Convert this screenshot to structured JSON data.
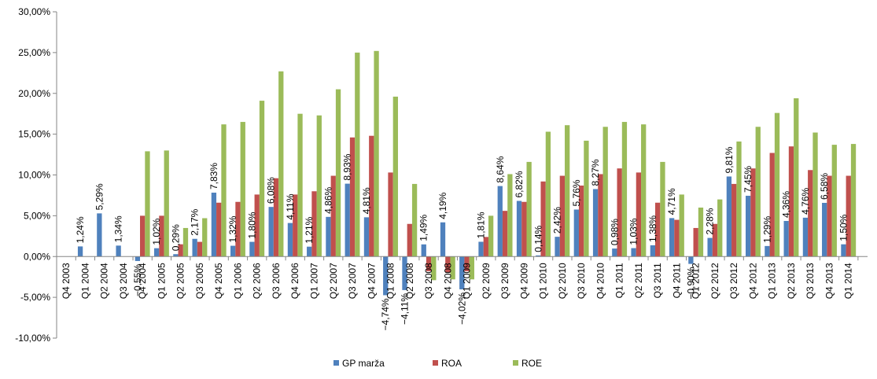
{
  "chart_data": {
    "type": "bar",
    "title": "",
    "xlabel": "",
    "ylabel": "",
    "ylim": [
      -10,
      30
    ],
    "ytick_step": 5,
    "ytick_format": "percent-2dp-comma",
    "grid": false,
    "legend_position": "bottom",
    "categories": [
      "Q4 2003",
      "Q1 2004",
      "Q2 2004",
      "Q3 2004",
      "Q4 2004",
      "Q1 2005",
      "Q2 2005",
      "Q3 2005",
      "Q4 2005",
      "Q1 2006",
      "Q2 2006",
      "Q3 2006",
      "Q4 2006",
      "Q1 2007",
      "Q2 2007",
      "Q3 2007",
      "Q4 2007",
      "Q1 2008",
      "Q2 2008",
      "Q3 2008",
      "Q4 2008",
      "Q1 2009",
      "Q2 2009",
      "Q3 2009",
      "Q4 2009",
      "Q1 2010",
      "Q2 2010",
      "Q3 2010",
      "Q4 2010",
      "Q1 2011",
      "Q2 2011",
      "Q3 2011",
      "Q4 2011",
      "Q1 2012",
      "Q2 2012",
      "Q3 2012",
      "Q4 2012",
      "Q1 2013",
      "Q2 2013",
      "Q3 2013",
      "Q4 2013",
      "Q1 2014"
    ],
    "series": [
      {
        "name": "GP marža",
        "color": "#4F81BD",
        "values": [
          0,
          1.24,
          5.29,
          1.34,
          -0.55,
          1.02,
          0.29,
          2.17,
          7.83,
          1.32,
          1.8,
          6.08,
          4.11,
          1.21,
          4.86,
          8.93,
          4.81,
          -4.74,
          -4.11,
          1.49,
          4.19,
          -4.02,
          1.81,
          8.64,
          6.82,
          0.14,
          2.42,
          5.76,
          8.27,
          0.98,
          1.03,
          1.38,
          4.71,
          -0.9,
          2.28,
          9.81,
          7.45,
          1.29,
          4.36,
          4.76,
          6.58,
          1.5
        ],
        "labels": [
          "",
          "1,24%",
          "5,29%",
          "1,34%",
          "-0,55%",
          "1,02%",
          "0,29%",
          "2,17%",
          "7,83%",
          "1,32%",
          "1,80%",
          "6,08%",
          "4,11%",
          "1,21%",
          "4,86%",
          "8,93%",
          "4,81%",
          "-4,74%",
          "-4,11%",
          "1,49%",
          "4,19%",
          "-4,02%",
          "1,81%",
          "8,64%",
          "6,82%",
          "0,14%",
          "2,42%",
          "5,76%",
          "8,27%",
          "0,98%",
          "1,03%",
          "1,38%",
          "4,71%",
          "-0,90%",
          "2,28%",
          "9,81%",
          "7,45%",
          "1,29%",
          "4,36%",
          "4,76%",
          "6,58%",
          "1,50%"
        ]
      },
      {
        "name": "ROA",
        "color": "#C0504D",
        "values": [
          0,
          0,
          0,
          0,
          5.0,
          5.0,
          1.5,
          1.8,
          6.6,
          6.7,
          7.6,
          9.6,
          7.6,
          8.0,
          9.9,
          14.6,
          14.8,
          10.3,
          4.0,
          -1.8,
          -2.0,
          -1.8,
          2.4,
          5.6,
          6.7,
          9.2,
          9.9,
          8.7,
          10.1,
          10.8,
          10.3,
          6.6,
          4.5,
          3.5,
          4.0,
          8.9,
          10.8,
          12.7,
          13.5,
          10.6,
          9.9,
          9.9
        ]
      },
      {
        "name": "ROE",
        "color": "#9BBB59",
        "values": [
          0,
          0,
          0,
          0,
          12.9,
          13.0,
          3.5,
          4.7,
          16.2,
          16.5,
          19.1,
          22.7,
          17.5,
          17.3,
          20.5,
          25.0,
          25.2,
          19.6,
          8.9,
          -2.9,
          -2.8,
          -2.8,
          5.0,
          10.1,
          11.6,
          15.3,
          16.1,
          14.2,
          15.9,
          16.5,
          16.2,
          11.6,
          7.6,
          6.0,
          7.0,
          14.1,
          15.9,
          17.6,
          19.4,
          15.2,
          13.7,
          13.8
        ]
      }
    ]
  }
}
